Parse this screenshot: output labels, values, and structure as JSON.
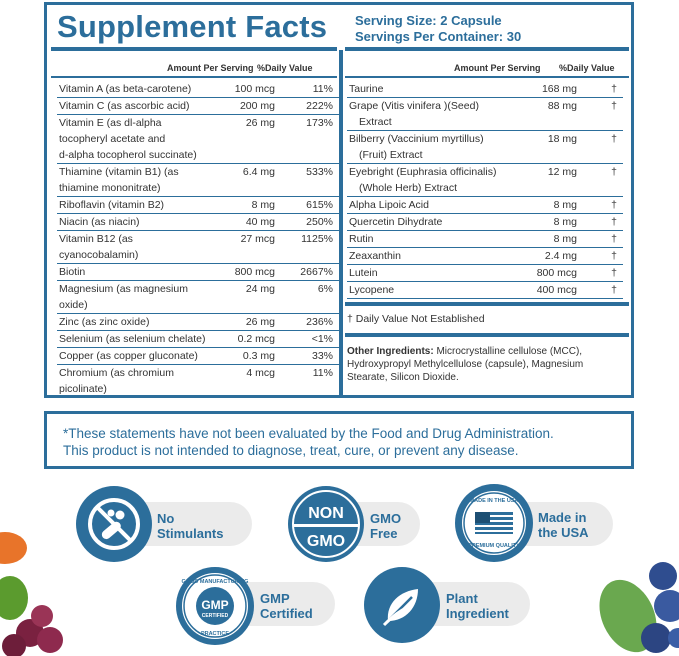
{
  "title": "Supplement Facts",
  "serving_size": "Serving Size: 2 Capsule",
  "servings_per_container": "Servings Per Container: 30",
  "col_amount": "Amount Per Serving",
  "col_dv": "%Daily Value",
  "left_rows": [
    {
      "name": [
        "Vitamin A (as beta-carotene)"
      ],
      "amount": "100 mcg",
      "dv": "11%"
    },
    {
      "name": [
        "Vitamin C (as ascorbic acid)"
      ],
      "amount": "200 mg",
      "dv": "222%"
    },
    {
      "name": [
        "Vitamin E (as dl-alpha",
        "tocopheryl acetate and",
        "d-alpha tocopherol succinate)"
      ],
      "amount": "26 mg",
      "dv": "173%"
    },
    {
      "name": [
        "Thiamine (vitamin B1) (as",
        "thiamine mononitrate)"
      ],
      "amount": "6.4 mg",
      "dv": "533%"
    },
    {
      "name": [
        "Riboflavin (vitamin B2)"
      ],
      "amount": "8 mg",
      "dv": "615%"
    },
    {
      "name": [
        "Niacin (as niacin)"
      ],
      "amount": "40 mg",
      "dv": "250%"
    },
    {
      "name": [
        "Vitamin B12 (as",
        "cyanocobalamin)"
      ],
      "amount": "27 mcg",
      "dv": "1125%"
    },
    {
      "name": [
        "Biotin"
      ],
      "amount": "800 mcg",
      "dv": "2667%"
    },
    {
      "name": [
        "Magnesium (as magnesium",
        "oxide)"
      ],
      "amount": "24 mg",
      "dv": "6%"
    },
    {
      "name": [
        "Zinc (as zinc oxide)"
      ],
      "amount": "26 mg",
      "dv": "236%"
    },
    {
      "name": [
        "Selenium (as selenium chelate)"
      ],
      "amount": "0.2 mcg",
      "dv": "<1%"
    },
    {
      "name": [
        "Copper (as copper gluconate)"
      ],
      "amount": "0.3 mg",
      "dv": "33%"
    },
    {
      "name": [
        "Chromium (as chromium",
        "picolinate)"
      ],
      "amount": "4 mcg",
      "dv": "11%"
    }
  ],
  "right_rows": [
    {
      "name": [
        "Taurine"
      ],
      "amount": "168 mg",
      "dv": "†"
    },
    {
      "name": [
        "Grape (Vitis vinifera )(Seed)",
        "Extract"
      ],
      "amount": "88 mg",
      "dv": "†"
    },
    {
      "name": [
        "Bilberry (Vaccinium myrtillus)",
        "(Fruit) Extract"
      ],
      "amount": "18 mg",
      "dv": "†"
    },
    {
      "name": [
        "Eyebright (Euphrasia officinalis)",
        "(Whole Herb) Extract"
      ],
      "amount": "12 mg",
      "dv": "†"
    },
    {
      "name": [
        "Alpha Lipoic Acid"
      ],
      "amount": "8 mg",
      "dv": "†"
    },
    {
      "name": [
        "Quercetin Dihydrate"
      ],
      "amount": "8 mg",
      "dv": "†"
    },
    {
      "name": [
        "Rutin"
      ],
      "amount": "8 mg",
      "dv": "†"
    },
    {
      "name": [
        "Zeaxanthin"
      ],
      "amount": "2.4 mg",
      "dv": "†"
    },
    {
      "name": [
        "Lutein"
      ],
      "amount": "800 mcg",
      "dv": "†"
    },
    {
      "name": [
        "Lycopene"
      ],
      "amount": "400 mcg",
      "dv": "†"
    }
  ],
  "dagger_note": "† Daily Value Not Established",
  "other_label": "Other Ingredients:",
  "other_text": " Microcrystalline cellulose (MCC), Hydroxypropyl Methylcellulose (capsule), Magnesium Stearate, Silicon Dioxide.",
  "statement_line1": "*These statements have not been evaluated by the Food and Drug Administration.",
  "statement_line2": "This product is not intended to diagnose, treat, cure, or prevent any disease.",
  "badges": {
    "no_stimulants": [
      "No",
      "Stimulants"
    ],
    "non_gmo_icon_top": "NON",
    "non_gmo_icon_bottom": "GMO",
    "gmo_free": [
      "GMO",
      "Free"
    ],
    "usa_icon_top": "MADE IN THE USA",
    "usa_icon_bottom": "PREMIUM QUALITY",
    "made_in_usa": [
      "Made in",
      "the USA"
    ],
    "gmp_icon_top": "GOOD MANUFACTURING",
    "gmp_icon_center": "GMP",
    "gmp_icon_sub": "CERTIFIED",
    "gmp_icon_bottom": "PRACTICE",
    "gmp_certified": [
      "GMP",
      "Certified"
    ],
    "plant_ingredient": [
      "Plant",
      "Ingredient"
    ]
  },
  "colors": {
    "brand_blue": "#2c6e9b",
    "pill_gray": "#ebebeb"
  }
}
